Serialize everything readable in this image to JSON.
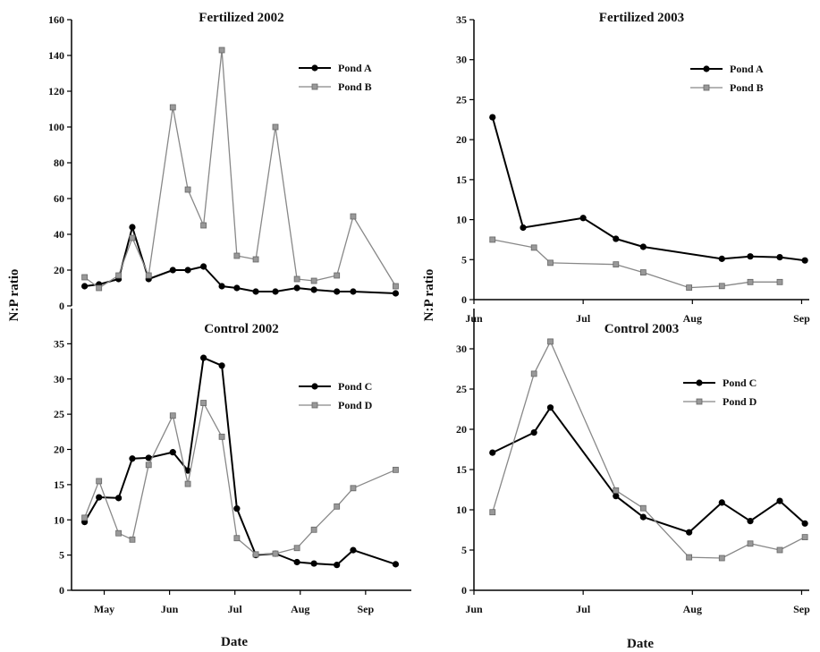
{
  "ylabel": "N:P ratio",
  "xlabel": "Date",
  "chart_data": [
    {
      "type": "line",
      "title": "Fertilized 2002",
      "ylim": [
        0,
        160
      ],
      "yticks": [
        0,
        20,
        40,
        60,
        80,
        100,
        120,
        140,
        160
      ],
      "xlim": [
        0,
        5.2
      ],
      "xticks": [
        {
          "pos": 0.5,
          "label": "May"
        },
        {
          "pos": 1.5,
          "label": "Jun"
        },
        {
          "pos": 2.5,
          "label": "Jul"
        },
        {
          "pos": 3.5,
          "label": "Aug"
        },
        {
          "pos": 4.5,
          "label": "Sep"
        }
      ],
      "legend": "top-right",
      "series": [
        {
          "name": "Pond A",
          "color": "#000000",
          "marker": "filled-circle",
          "x": [
            0.2,
            0.42,
            0.72,
            0.93,
            1.18,
            1.55,
            1.78,
            2.02,
            2.3,
            2.53,
            2.82,
            3.12,
            3.45,
            3.71,
            4.06,
            4.31,
            4.96
          ],
          "y": [
            11,
            12,
            15,
            44,
            15,
            20,
            20,
            22,
            11,
            10,
            8,
            8,
            10,
            9,
            8,
            8,
            7
          ]
        },
        {
          "name": "Pond B",
          "color": "#888888",
          "marker": "gray-square",
          "x": [
            0.2,
            0.42,
            0.72,
            0.93,
            1.18,
            1.55,
            1.78,
            2.02,
            2.3,
            2.53,
            2.82,
            3.12,
            3.45,
            3.71,
            4.06,
            4.31,
            4.96
          ],
          "y": [
            16,
            10,
            17,
            38,
            17,
            111,
            65,
            45,
            143,
            28,
            26,
            100,
            15,
            14,
            17,
            50,
            11
          ]
        }
      ]
    },
    {
      "type": "line",
      "title": "Fertilized 2003",
      "ylim": [
        0,
        35
      ],
      "yticks": [
        0,
        5,
        10,
        15,
        20,
        25,
        30,
        35
      ],
      "xlim": [
        0,
        3.07
      ],
      "xticks": [
        {
          "pos": 0,
          "label": "Jun"
        },
        {
          "pos": 1,
          "label": "Jul"
        },
        {
          "pos": 2,
          "label": "Aug"
        },
        {
          "pos": 3,
          "label": "Sep"
        }
      ],
      "legend": "top-right",
      "series": [
        {
          "name": "Pond A",
          "color": "#000000",
          "marker": "filled-circle",
          "x": [
            0.17,
            0.45,
            1.0,
            1.3,
            1.55,
            2.27,
            2.53,
            2.8,
            3.03
          ],
          "y": [
            22.8,
            9.0,
            10.2,
            7.6,
            6.6,
            5.1,
            5.4,
            5.3,
            4.9
          ]
        },
        {
          "name": "Pond B",
          "color": "#888888",
          "marker": "gray-square",
          "x": [
            0.17,
            0.55,
            0.7,
            1.3,
            1.55,
            1.97,
            2.27,
            2.53,
            2.8
          ],
          "y": [
            7.5,
            6.5,
            4.6,
            4.4,
            3.4,
            1.5,
            1.7,
            2.2,
            2.2
          ]
        }
      ]
    },
    {
      "type": "line",
      "title": "Control 2002",
      "ylim": [
        0,
        40
      ],
      "yticks": [
        0,
        5,
        10,
        15,
        20,
        25,
        30,
        35
      ],
      "xlim": [
        0,
        5.2
      ],
      "xticks": [
        {
          "pos": 0.5,
          "label": "May"
        },
        {
          "pos": 1.5,
          "label": "Jun"
        },
        {
          "pos": 2.5,
          "label": "Jul"
        },
        {
          "pos": 3.5,
          "label": "Aug"
        },
        {
          "pos": 4.5,
          "label": "Sep"
        }
      ],
      "legend": "top-right",
      "series": [
        {
          "name": "Pond C",
          "color": "#000000",
          "marker": "filled-circle",
          "x": [
            0.2,
            0.42,
            0.72,
            0.93,
            1.18,
            1.55,
            1.78,
            2.02,
            2.3,
            2.53,
            2.82,
            3.12,
            3.45,
            3.71,
            4.06,
            4.31,
            4.96
          ],
          "y": [
            9.7,
            13.2,
            13.1,
            18.7,
            18.8,
            19.6,
            17.0,
            33.0,
            31.9,
            11.6,
            5.0,
            5.2,
            4.0,
            3.8,
            3.6,
            5.7,
            3.7
          ]
        },
        {
          "name": "Pond D",
          "color": "#888888",
          "marker": "gray-square",
          "x": [
            0.2,
            0.42,
            0.72,
            0.93,
            1.18,
            1.55,
            1.78,
            2.02,
            2.3,
            2.53,
            2.82,
            3.12,
            3.45,
            3.71,
            4.06,
            4.31,
            4.96
          ],
          "y": [
            10.3,
            15.5,
            8.1,
            7.2,
            17.8,
            24.8,
            15.1,
            26.6,
            21.8,
            7.4,
            5.1,
            5.2,
            6.0,
            8.6,
            11.9,
            14.5,
            17.1
          ]
        }
      ]
    },
    {
      "type": "line",
      "title": "Control 2003",
      "ylim": [
        0,
        35
      ],
      "yticks": [
        0,
        5,
        10,
        15,
        20,
        25,
        30
      ],
      "xlim": [
        0,
        3.07
      ],
      "xticks": [
        {
          "pos": 0,
          "label": "Jun"
        },
        {
          "pos": 1,
          "label": "Jul"
        },
        {
          "pos": 2,
          "label": "Aug"
        },
        {
          "pos": 3,
          "label": "Sep"
        }
      ],
      "legend": "top-right",
      "series": [
        {
          "name": "Pond C",
          "color": "#000000",
          "marker": "filled-circle",
          "x": [
            0.17,
            0.55,
            0.7,
            1.3,
            1.55,
            1.97,
            2.27,
            2.53,
            2.8,
            3.03
          ],
          "y": [
            17.1,
            19.6,
            22.7,
            11.7,
            9.1,
            7.2,
            10.9,
            8.6,
            11.1,
            8.3
          ]
        },
        {
          "name": "Pond D",
          "color": "#888888",
          "marker": "gray-square",
          "x": [
            0.17,
            0.55,
            0.7,
            1.3,
            1.55,
            1.97,
            2.27,
            2.53,
            2.8,
            3.03
          ],
          "y": [
            9.7,
            26.9,
            30.9,
            12.4,
            10.2,
            4.1,
            4.0,
            5.8,
            5.0,
            6.6
          ]
        }
      ]
    }
  ]
}
